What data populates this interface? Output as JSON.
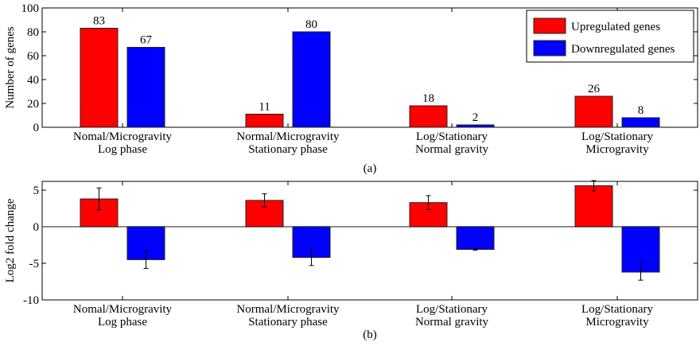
{
  "colors": {
    "up": "#ff0000",
    "down": "#0000ff"
  },
  "chart_data": [
    {
      "type": "bar",
      "caption": "(a)",
      "ylabel": "Number of genes",
      "ylim": [
        0,
        100
      ],
      "yticks": [
        0,
        20,
        40,
        60,
        80,
        100
      ],
      "categories": [
        [
          "Nomal/Microgravity",
          "Log phase"
        ],
        [
          "Normal/Microgravity",
          "Stationary phase"
        ],
        [
          "Log/Stationary",
          "Normal gravity"
        ],
        [
          "Log/Stationary",
          "Microgravity"
        ]
      ],
      "series": [
        {
          "name": "Upregulated genes",
          "values": [
            83,
            11,
            18,
            26
          ]
        },
        {
          "name": "Downregulated genes",
          "values": [
            67,
            80,
            2,
            8
          ]
        }
      ],
      "data_labels": true,
      "legend": "top-right",
      "grid": false
    },
    {
      "type": "bar",
      "caption": "(b)",
      "ylabel": "Log2 fold change",
      "ylim": [
        -10,
        6.2
      ],
      "yticks": [
        -10,
        -5,
        0,
        5
      ],
      "categories": [
        [
          "Nomal/Microgravity",
          "Log phase"
        ],
        [
          "Normal/Microgravity",
          "Stationary phase"
        ],
        [
          "Log/Stationary",
          "Normal gravity"
        ],
        [
          "Log/Stationary",
          "Microgravity"
        ]
      ],
      "series": [
        {
          "values": [
            3.8,
            3.6,
            3.3,
            5.6
          ],
          "errors": [
            1.5,
            0.9,
            0.95,
            0.7
          ]
        },
        {
          "values": [
            -4.5,
            -4.2,
            -3.1,
            -6.2
          ],
          "errors": [
            1.2,
            1.1,
            0.1,
            1.1
          ]
        }
      ],
      "grid": false
    }
  ]
}
